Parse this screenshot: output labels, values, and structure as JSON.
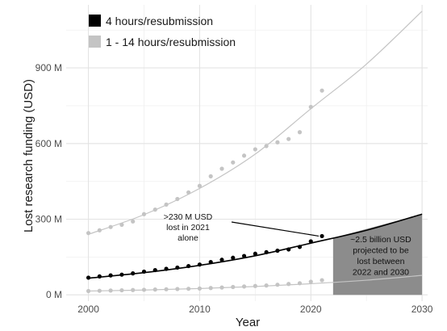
{
  "chart_data": {
    "type": "scatter",
    "title": "",
    "xlabel": "Year",
    "ylabel": "Lost research funding (USD)",
    "xlim": [
      1998,
      2030.5
    ],
    "ylim": [
      -25,
      1150
    ],
    "x_ticks": [
      {
        "value": 2000,
        "label": "2000"
      },
      {
        "value": 2010,
        "label": "2010"
      },
      {
        "value": 2020,
        "label": "2020"
      },
      {
        "value": 2030,
        "label": "2030"
      }
    ],
    "y_ticks": [
      {
        "value": 0,
        "label": "0 M"
      },
      {
        "value": 300,
        "label": "300 M"
      },
      {
        "value": 600,
        "label": "600 M"
      },
      {
        "value": 900,
        "label": "900 M"
      }
    ],
    "grid": true,
    "legend_position": "top-left",
    "series": [
      {
        "name": "4 hours/resubmission",
        "color": "#000000",
        "x": [
          2000,
          2001,
          2002,
          2003,
          2004,
          2005,
          2006,
          2007,
          2008,
          2009,
          2010,
          2011,
          2012,
          2013,
          2014,
          2015,
          2016,
          2017,
          2018,
          2019,
          2020,
          2021
        ],
        "values": [
          68,
          73,
          77,
          80,
          85,
          92,
          98,
          103,
          108,
          114,
          120,
          130,
          139,
          147,
          154,
          163,
          169,
          175,
          180,
          190,
          212,
          233
        ],
        "trend": {
          "x": [
            2000,
            2005,
            2010,
            2015,
            2020,
            2025,
            2030
          ],
          "values": [
            66,
            88,
            117,
            155,
            205,
            256,
            320
          ]
        }
      },
      {
        "name": "1 - 14 hours/resubmission",
        "color": "#c4c4c4",
        "x": [
          2000,
          2001,
          2002,
          2003,
          2004,
          2005,
          2006,
          2007,
          2008,
          2009,
          2010,
          2011,
          2012,
          2013,
          2014,
          2015,
          2016,
          2017,
          2018,
          2019,
          2020,
          2021
        ],
        "values": [
          245,
          256,
          269,
          278,
          291,
          320,
          338,
          358,
          380,
          406,
          432,
          470,
          500,
          525,
          552,
          577,
          590,
          605,
          618,
          645,
          745,
          810
        ],
        "trend": {
          "x": [
            2000,
            2005,
            2010,
            2015,
            2020,
            2025,
            2030
          ],
          "values": [
            240,
            318,
            422,
            558,
            738,
            915,
            1125
          ]
        }
      },
      {
        "name": "",
        "color": "#c4c4c4",
        "x": [
          2000,
          2001,
          2002,
          2003,
          2004,
          2005,
          2006,
          2007,
          2008,
          2009,
          2010,
          2011,
          2012,
          2013,
          2014,
          2015,
          2016,
          2017,
          2018,
          2019,
          2020,
          2021
        ],
        "values": [
          15,
          16,
          17,
          18,
          19,
          20,
          21,
          22,
          23,
          24,
          25,
          27,
          29,
          31,
          33,
          35,
          37,
          40,
          43,
          46,
          52,
          58
        ],
        "trend": {
          "x": [
            2000,
            2005,
            2010,
            2015,
            2020,
            2025,
            2030
          ],
          "values": [
            15,
            19,
            25,
            33,
            44,
            58,
            77
          ]
        }
      }
    ],
    "projection_area": {
      "x": [
        2022,
        2030
      ],
      "upper": [
        226,
        320
      ],
      "lower": [
        0,
        0
      ],
      "color": "#8c8c8c",
      "label_lines": [
        "~2.5 billion USD",
        "projected to be",
        "lost between",
        "2022 and 2030"
      ]
    },
    "annotations": [
      {
        "lines": [
          ">230 M USD",
          "lost in 2021",
          "alone"
        ],
        "points_to": {
          "x": 2021,
          "y": 233
        }
      }
    ]
  }
}
